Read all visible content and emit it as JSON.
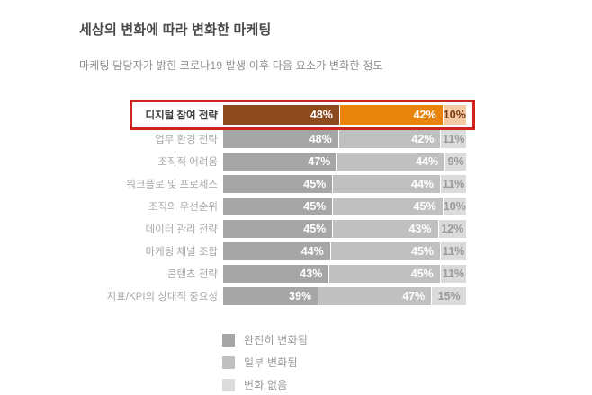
{
  "page": {
    "title": "세상의 변화에 따라 변화한 마케팅",
    "subtitle": "마케팅 담당자가 밝힌 코로나19 발생 이후 다음 요소가 변화한 정도"
  },
  "chart_data": {
    "type": "bar",
    "orientation": "horizontal-stacked",
    "unit": "%",
    "title": "세상의 변화에 따라 변화한 마케팅",
    "subtitle": "마케팅 담당자가 밝힌 코로나19 발생 이후 다음 요소가 변화한 정도",
    "categories": [
      "디지털 참여 전략",
      "업무 환경 전략",
      "조직적 어려움",
      "워크플로 및 프로세스",
      "조직의 우선순위",
      "데이터 관리 전략",
      "마케팅 채널 조합",
      "콘텐츠 전략",
      "지표/KPI의 상대적 중요성"
    ],
    "series": [
      {
        "name": "완전히 변화됨",
        "values": [
          48,
          48,
          47,
          45,
          45,
          45,
          44,
          43,
          39
        ]
      },
      {
        "name": "일부 변화됨",
        "values": [
          42,
          42,
          44,
          44,
          45,
          43,
          45,
          45,
          47
        ]
      },
      {
        "name": "변화 없음",
        "values": [
          10,
          11,
          9,
          11,
          10,
          12,
          11,
          11,
          15
        ]
      }
    ],
    "rows": [
      {
        "label": "디지털 참여 전략",
        "values": [
          48,
          42,
          10
        ],
        "display": [
          "48%",
          "42%",
          "10%"
        ],
        "highlighted": true
      },
      {
        "label": "업무 환경 전략",
        "values": [
          48,
          42,
          11
        ],
        "display": [
          "48%",
          "42%",
          "11%"
        ],
        "highlighted": false
      },
      {
        "label": "조직적 어려움",
        "values": [
          47,
          44,
          9
        ],
        "display": [
          "47%",
          "44%",
          "9%"
        ],
        "highlighted": false
      },
      {
        "label": "워크플로 및 프로세스",
        "values": [
          45,
          44,
          11
        ],
        "display": [
          "45%",
          "44%",
          "11%"
        ],
        "highlighted": false
      },
      {
        "label": "조직의 우선순위",
        "values": [
          45,
          45,
          10
        ],
        "display": [
          "45%",
          "45%",
          "10%"
        ],
        "highlighted": false
      },
      {
        "label": "데이터 관리 전략",
        "values": [
          45,
          43,
          12
        ],
        "display": [
          "45%",
          "43%",
          "12%"
        ],
        "highlighted": false
      },
      {
        "label": "마케팅 채널 조합",
        "values": [
          44,
          45,
          11
        ],
        "display": [
          "44%",
          "45%",
          "11%"
        ],
        "highlighted": false
      },
      {
        "label": "콘텐츠 전략",
        "values": [
          43,
          45,
          11
        ],
        "display": [
          "43%",
          "45%",
          "11%"
        ],
        "highlighted": false
      },
      {
        "label": "지표/KPI의 상대적 중요성",
        "values": [
          39,
          47,
          15
        ],
        "display": [
          "39%",
          "47%",
          "15%"
        ],
        "highlighted": false
      }
    ],
    "highlight": {
      "row": "디지털 참여 전략",
      "border_color": "#ce241c"
    },
    "colors": {
      "highlight_segments": [
        "#8e4a1f",
        "#e8830c",
        "#f5cba6"
      ],
      "gray_segments": [
        "#a6a6a6",
        "#c0c0c0",
        "#dbdbdb"
      ]
    },
    "legend_position": "bottom"
  },
  "legend": {
    "items": [
      {
        "label": "완전히 변화됨",
        "color": "#a6a6a6"
      },
      {
        "label": "일부 변화됨",
        "color": "#c0c0c0"
      },
      {
        "label": "변화 없음",
        "color": "#dcdcdc"
      }
    ]
  }
}
